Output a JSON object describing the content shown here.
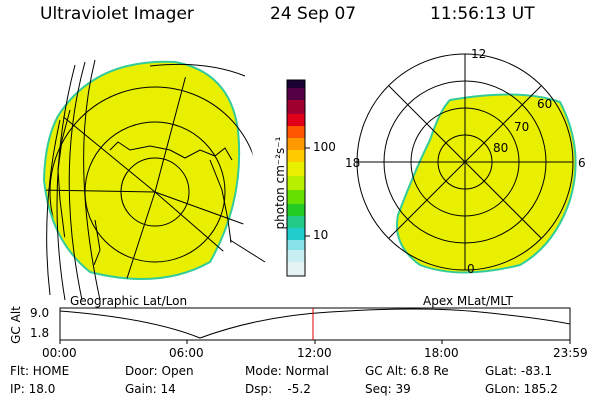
{
  "header": {
    "instrument": "Ultraviolet Imager",
    "date": "24 Sep 07",
    "time": "11:56:13 UT"
  },
  "colorbar": {
    "unit_label": "photon cm⁻²s⁻¹",
    "tick_100": "100",
    "tick_10": "10"
  },
  "left_panel": {
    "caption": "Geographic Lat/Lon"
  },
  "right_panel": {
    "caption": "Apex MLat/MLT",
    "mlt_12": "12",
    "mlt_18": "18",
    "mlt_6": "6",
    "mlt_0": "0",
    "lat_60": "60",
    "lat_70": "70",
    "lat_80": "80"
  },
  "orbit_plot": {
    "ylabel": "GC Alt",
    "y_max": "9.0",
    "y_min": "1.8",
    "x_ticks": [
      "00:00",
      "06:00",
      "12:00",
      "18:00",
      "23:59"
    ]
  },
  "status": {
    "flt": "Flt: HOME",
    "ip": "IP: 18.0",
    "door": "Door: Open",
    "gain": "Gain: 14",
    "mode": "Mode: Normal",
    "dsp": "Dsp:    -5.2",
    "gc_alt": "GC Alt: 6.8 Re",
    "seq": "Seq: 39",
    "glat": "GLat: -83.1",
    "glon": "GLon: 185.2"
  },
  "colors": {
    "image_fill": "#e8f000",
    "edge": "#33cc99",
    "marker": "#e00000"
  }
}
